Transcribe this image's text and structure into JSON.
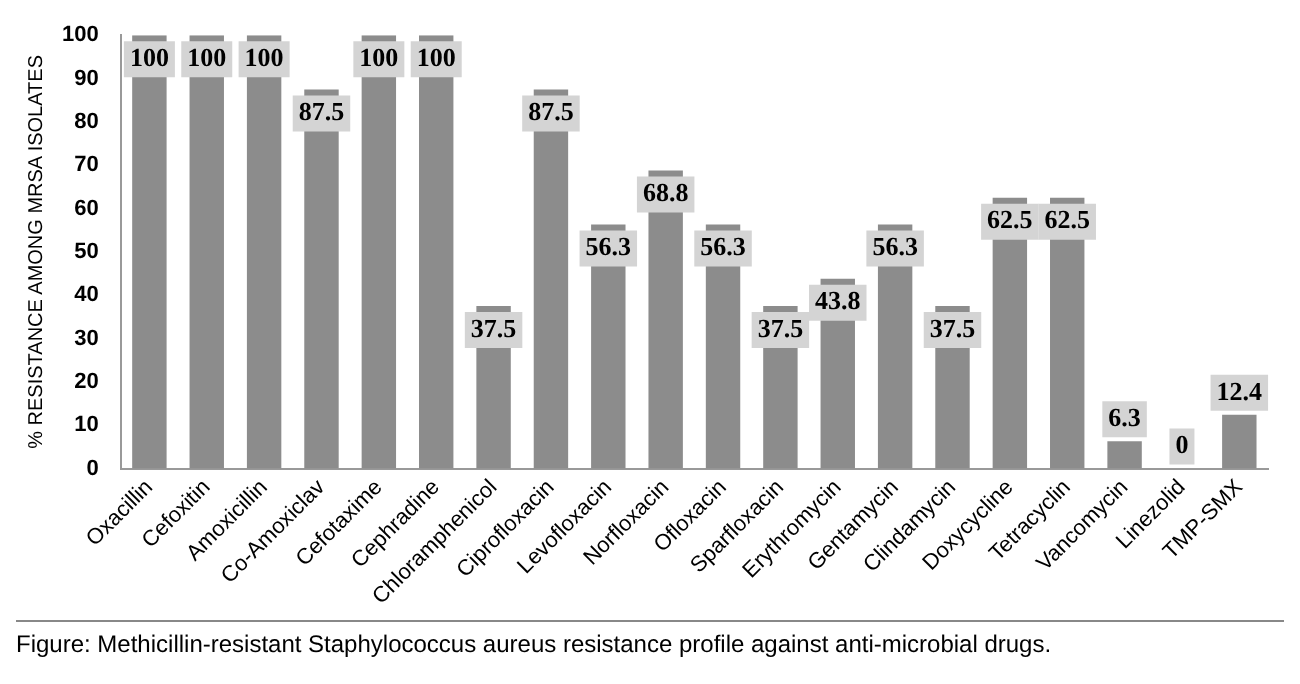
{
  "chart_data": {
    "type": "bar",
    "ylabel": "% RESISTANCE AMONG MRSA ISOLATES",
    "categories": [
      "Oxacillin",
      "Cefoxitin",
      "Amoxicillin",
      "Co-Amoxiclav",
      "Cefotaxime",
      "Cephradine",
      "Chloramphenicol",
      "Ciprofloxacin",
      "Levofloxacin",
      "Norfloxacin",
      "Ofloxacin",
      "Sparfloxacin",
      "Erythromycin",
      "Gentamycin",
      "Clindamycin",
      "Doxycycline",
      "Tetracyclin",
      "Vancomycin",
      "Linezolid",
      "TMP-SMX"
    ],
    "values": [
      100,
      100,
      100,
      87.5,
      100,
      100,
      37.5,
      87.5,
      56.3,
      68.8,
      56.3,
      37.5,
      43.8,
      56.3,
      37.5,
      62.5,
      62.5,
      6.3,
      0,
      12.4
    ],
    "color": "#8c8c8c",
    "ylim": [
      0,
      100
    ],
    "yticks": [
      0,
      10,
      20,
      30,
      40,
      50,
      60,
      70,
      80,
      90,
      100
    ],
    "grid": false,
    "data_labels": true,
    "annotations": [
      "Figure: Methicillin-resistant Staphylococcus aureus resistance profile against anti-microbial drugs."
    ]
  }
}
